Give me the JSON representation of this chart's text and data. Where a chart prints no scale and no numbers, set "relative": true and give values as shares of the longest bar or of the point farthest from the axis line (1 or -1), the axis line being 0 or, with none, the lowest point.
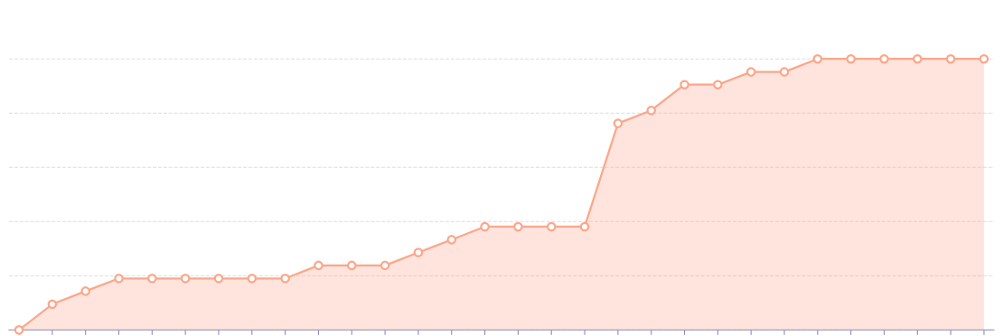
{
  "chart_data": {
    "type": "area",
    "relative": true,
    "grid": "y",
    "marker": "circle",
    "line_style": "solid",
    "categories": [
      null,
      null,
      null,
      null,
      null,
      null,
      null,
      null,
      null,
      null,
      null,
      null,
      null,
      null,
      null,
      null,
      null,
      null,
      null,
      null,
      null,
      null,
      null,
      null,
      null,
      null,
      null,
      null,
      null,
      null
    ],
    "series": [
      {
        "color": "#fca68a",
        "values": [
          0,
          0.095,
          0.143,
          0.19,
          0.19,
          0.19,
          0.19,
          0.19,
          0.19,
          0.238,
          0.238,
          0.238,
          0.286,
          0.333,
          0.381,
          0.381,
          0.381,
          0.381,
          0.762,
          0.81,
          0.905,
          0.905,
          0.952,
          0.952,
          1,
          1,
          1,
          1,
          1,
          1
        ]
      }
    ]
  }
}
